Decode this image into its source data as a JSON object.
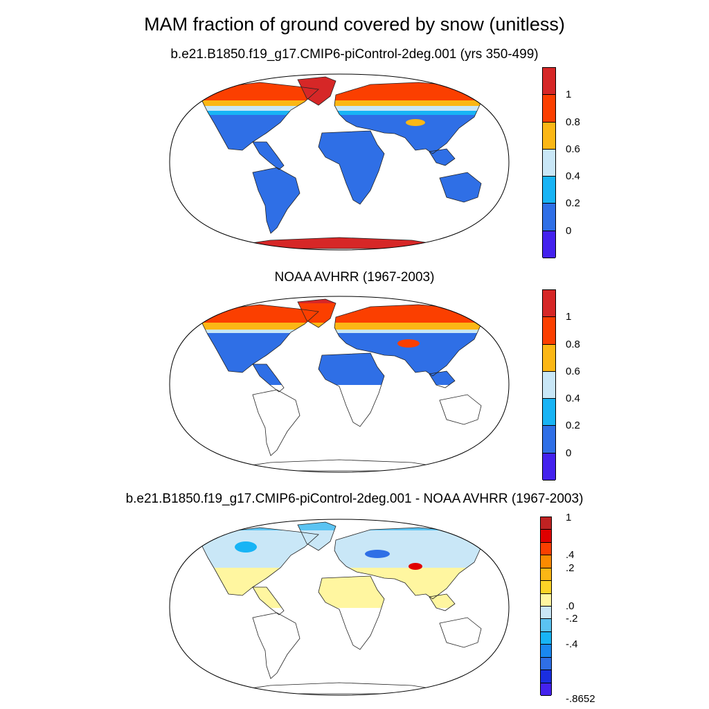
{
  "title": "MAM fraction of ground covered by snow (unitless)",
  "panels": [
    {
      "title": "b.e21.B1850.f19_g17.CMIP6-piControl-2deg.001 (yrs 350-499)",
      "colorbar": {
        "colors": [
          "#4422ee",
          "#2f6fe6",
          "#18b4f5",
          "#c9e7f7",
          "#fbb715",
          "#fb3f00",
          "#d62727"
        ],
        "labels": [
          "0",
          "0.2",
          "0.4",
          "0.6",
          "0.8",
          "1"
        ]
      },
      "fields": [
        {
          "name": "mid-latitude land",
          "value": "low",
          "color": "#2f6fe6"
        },
        {
          "name": "antarctica",
          "value": "high",
          "color": "#d62727"
        },
        {
          "name": "northern high latitudes",
          "value": "high",
          "color": "#fb3f00"
        },
        {
          "name": "transition belt",
          "value": "medium",
          "color": "#fbb715"
        }
      ]
    },
    {
      "title": "NOAA AVHRR (1967-2003)",
      "colorbar": {
        "colors": [
          "#4422ee",
          "#2f6fe6",
          "#18b4f5",
          "#c9e7f7",
          "#fbb715",
          "#fb3f00",
          "#d62727"
        ],
        "labels": [
          "0",
          "0.2",
          "0.4",
          "0.6",
          "0.8",
          "1"
        ]
      },
      "fields": [
        {
          "name": "mid-latitude land",
          "value": "low",
          "color": "#2f6fe6"
        },
        {
          "name": "northern high latitudes",
          "value": "high",
          "color": "#fb3f00"
        },
        {
          "name": "transition belt",
          "value": "medium",
          "color": "#fbb715"
        }
      ]
    },
    {
      "title": "b.e21.B1850.f19_g17.CMIP6-piControl-2deg.001 - NOAA AVHRR (1967-2003)",
      "colorbar": {
        "colors": [
          "#4422ee",
          "#1a2ee0",
          "#2f6fe6",
          "#1a88f0",
          "#18b4f5",
          "#5bc3f2",
          "#c9e7f7",
          "#fff6a0",
          "#fcd427",
          "#fbb715",
          "#fb8a00",
          "#fb3f00",
          "#e00000",
          "#c02222"
        ],
        "labels": [
          "1",
          ".4",
          ".2",
          ".0",
          "-.2",
          "-.4",
          "-.8652"
        ]
      },
      "fields": [
        {
          "name": "tropics difference",
          "value": "slightly positive",
          "color": "#fff6a0"
        },
        {
          "name": "northern land difference",
          "value": "negative",
          "color": "#c9e7f7"
        },
        {
          "name": "arctic coast difference",
          "value": "positive",
          "color": "#fb3f00"
        }
      ]
    }
  ]
}
